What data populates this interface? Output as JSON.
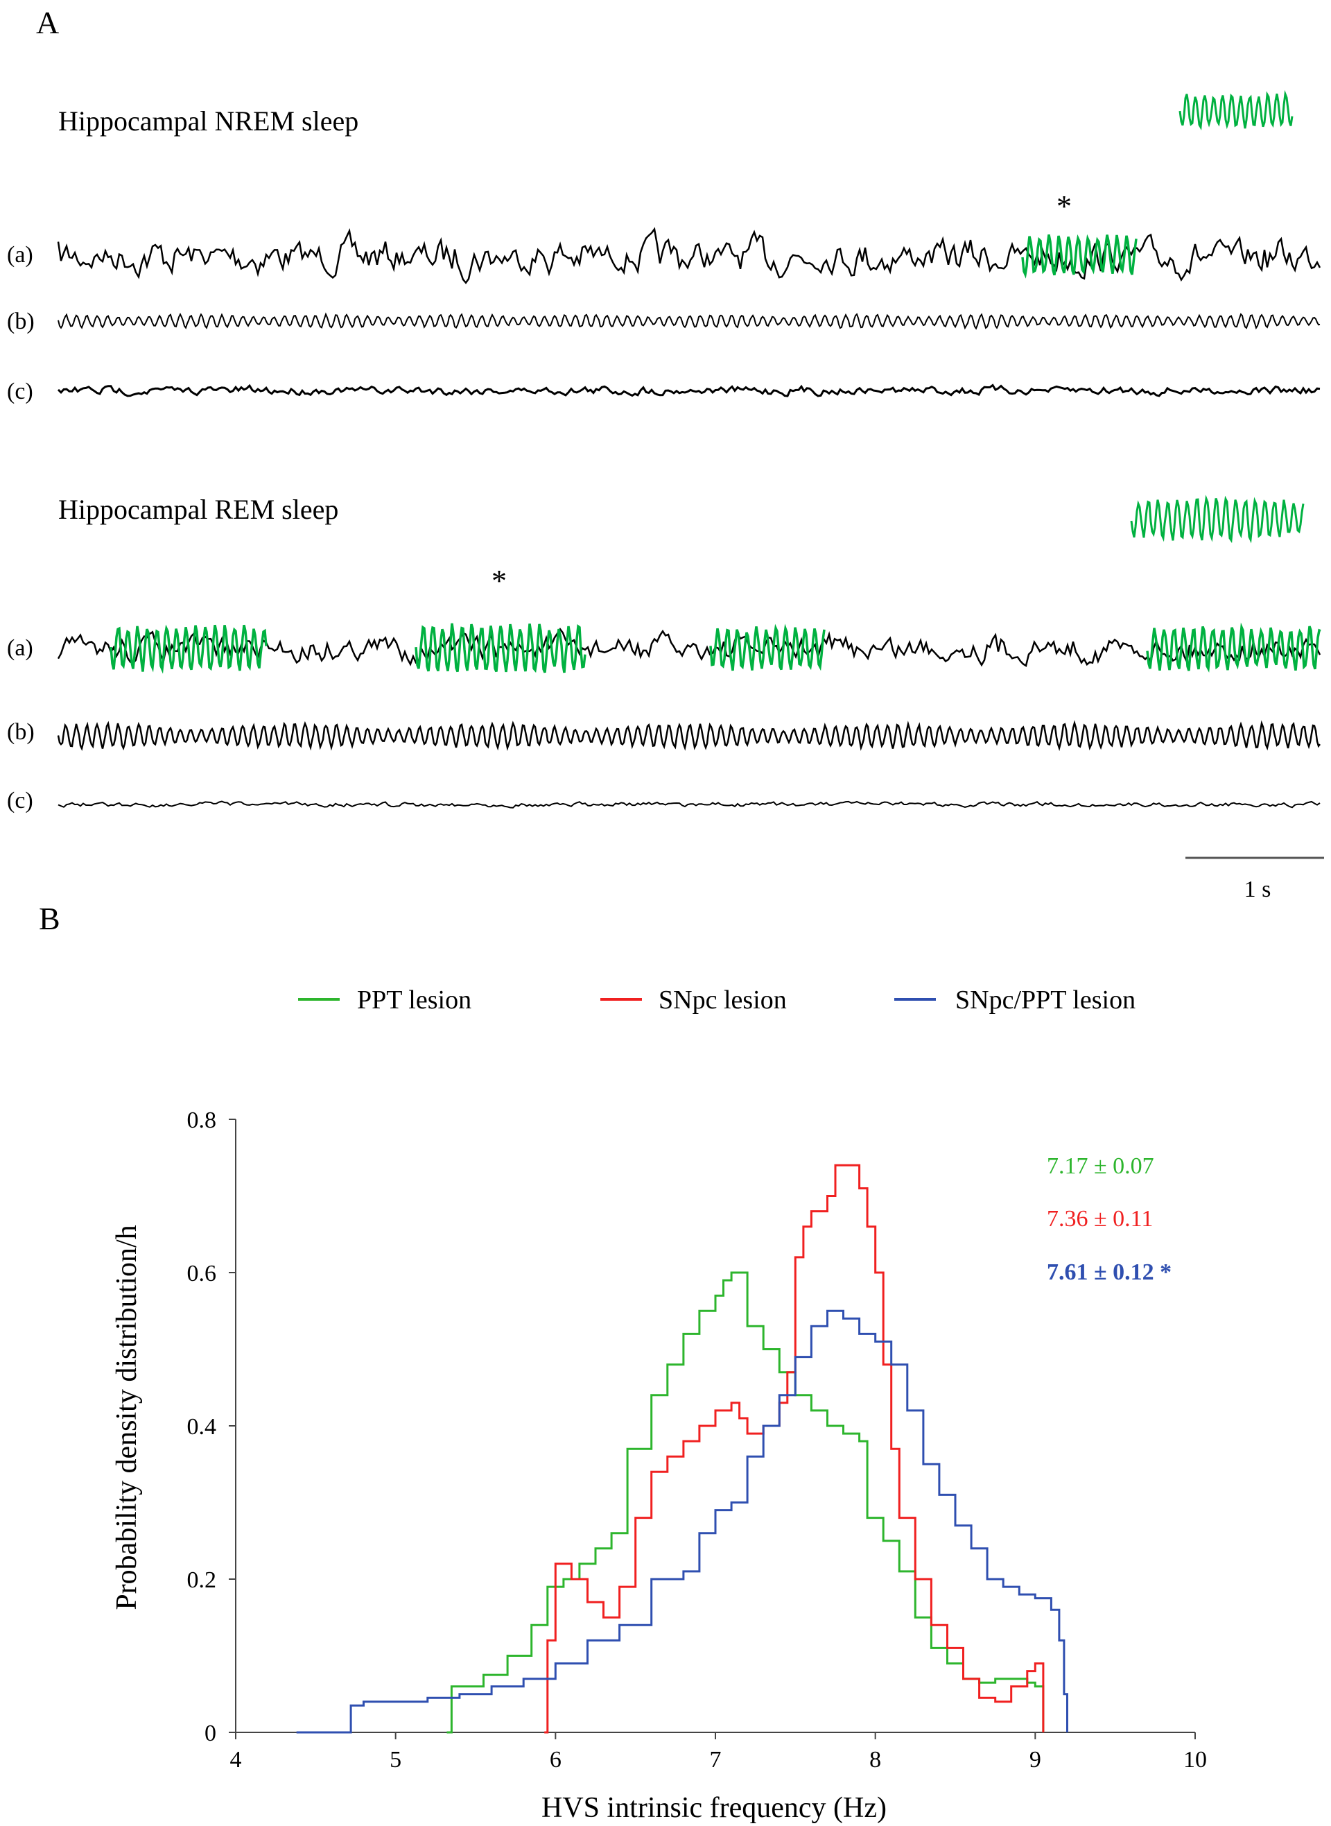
{
  "panelA": {
    "label": "A",
    "nrem": {
      "title": "Hippocampal NREM sleep",
      "traces": [
        "(a)",
        "(b)",
        "(c)"
      ],
      "marker": "*"
    },
    "rem": {
      "title": "Hippocampal REM sleep",
      "traces": [
        "(a)",
        "(b)",
        "(c)"
      ],
      "marker": "*"
    },
    "scalebar_label": "1 s",
    "colors": {
      "trace": "#000000",
      "hvs": "#00b140"
    }
  },
  "panelB": {
    "label": "B",
    "chart_data": {
      "type": "line",
      "xlabel": "HVS intrinsic frequency (Hz)",
      "ylabel": "Probability density distribution/h",
      "xlim": [
        4,
        10
      ],
      "ylim": [
        0,
        0.8
      ],
      "xticks": [
        4,
        5,
        6,
        7,
        8,
        9,
        10
      ],
      "yticks": [
        0,
        0.2,
        0.4,
        0.6,
        0.8
      ],
      "ytick_labels": [
        "0",
        "0.2",
        "0.4",
        "0.6",
        "0.8"
      ],
      "legend_position": "top",
      "grid": false,
      "series": [
        {
          "name": "PPT lesion",
          "color": "#2db52d",
          "annotation": "7.17 ± 0.07",
          "annotation_bold": false,
          "x": [
            5.32,
            5.35,
            5.55,
            5.7,
            5.85,
            5.95,
            6.05,
            6.15,
            6.25,
            6.35,
            6.45,
            6.5,
            6.6,
            6.7,
            6.8,
            6.9,
            7.0,
            7.05,
            7.1,
            7.15,
            7.2,
            7.3,
            7.4,
            7.5,
            7.6,
            7.7,
            7.8,
            7.9,
            7.95,
            8.05,
            8.15,
            8.25,
            8.35,
            8.45,
            8.55,
            8.65,
            8.75,
            8.85,
            8.95,
            9.0,
            9.05,
            9.05
          ],
          "y": [
            0.0,
            0.06,
            0.075,
            0.1,
            0.14,
            0.19,
            0.2,
            0.22,
            0.24,
            0.26,
            0.37,
            0.37,
            0.44,
            0.48,
            0.52,
            0.55,
            0.57,
            0.59,
            0.6,
            0.6,
            0.53,
            0.5,
            0.47,
            0.44,
            0.42,
            0.4,
            0.39,
            0.38,
            0.28,
            0.25,
            0.21,
            0.15,
            0.11,
            0.09,
            0.07,
            0.065,
            0.07,
            0.07,
            0.065,
            0.06,
            0.04,
            0.0
          ]
        },
        {
          "name": "SNpc lesion",
          "color": "#f02020",
          "annotation": "7.36 ± 0.11",
          "annotation_bold": false,
          "x": [
            5.93,
            5.95,
            6.0,
            6.1,
            6.2,
            6.3,
            6.4,
            6.5,
            6.6,
            6.7,
            6.8,
            6.9,
            7.0,
            7.1,
            7.15,
            7.2,
            7.3,
            7.4,
            7.45,
            7.5,
            7.55,
            7.6,
            7.7,
            7.75,
            7.8,
            7.9,
            7.95,
            8.0,
            8.05,
            8.1,
            8.15,
            8.25,
            8.35,
            8.45,
            8.55,
            8.65,
            8.75,
            8.85,
            8.95,
            9.0,
            9.05,
            9.05
          ],
          "y": [
            0.0,
            0.12,
            0.22,
            0.2,
            0.17,
            0.15,
            0.19,
            0.28,
            0.34,
            0.36,
            0.38,
            0.4,
            0.42,
            0.43,
            0.41,
            0.39,
            0.4,
            0.43,
            0.47,
            0.62,
            0.66,
            0.68,
            0.7,
            0.74,
            0.74,
            0.71,
            0.66,
            0.6,
            0.48,
            0.37,
            0.28,
            0.2,
            0.14,
            0.11,
            0.07,
            0.045,
            0.04,
            0.06,
            0.08,
            0.09,
            0.07,
            0.0
          ]
        },
        {
          "name": "SNpc/PPT lesion",
          "color": "#2f4fb0",
          "annotation": "7.61 ± 0.12 *",
          "annotation_bold": true,
          "x": [
            4.38,
            4.72,
            4.8,
            5.0,
            5.2,
            5.4,
            5.6,
            5.8,
            6.0,
            6.2,
            6.4,
            6.6,
            6.8,
            6.9,
            7.0,
            7.1,
            7.2,
            7.3,
            7.4,
            7.5,
            7.6,
            7.7,
            7.8,
            7.9,
            8.0,
            8.1,
            8.2,
            8.3,
            8.4,
            8.5,
            8.6,
            8.7,
            8.8,
            8.9,
            9.0,
            9.1,
            9.15,
            9.18,
            9.2,
            9.2
          ],
          "y": [
            0.0,
            0.035,
            0.04,
            0.04,
            0.045,
            0.05,
            0.06,
            0.07,
            0.09,
            0.12,
            0.14,
            0.2,
            0.21,
            0.26,
            0.29,
            0.3,
            0.36,
            0.4,
            0.44,
            0.49,
            0.53,
            0.55,
            0.54,
            0.52,
            0.51,
            0.48,
            0.42,
            0.35,
            0.31,
            0.27,
            0.24,
            0.2,
            0.19,
            0.18,
            0.175,
            0.16,
            0.12,
            0.05,
            0.02,
            0.0
          ]
        }
      ]
    }
  }
}
